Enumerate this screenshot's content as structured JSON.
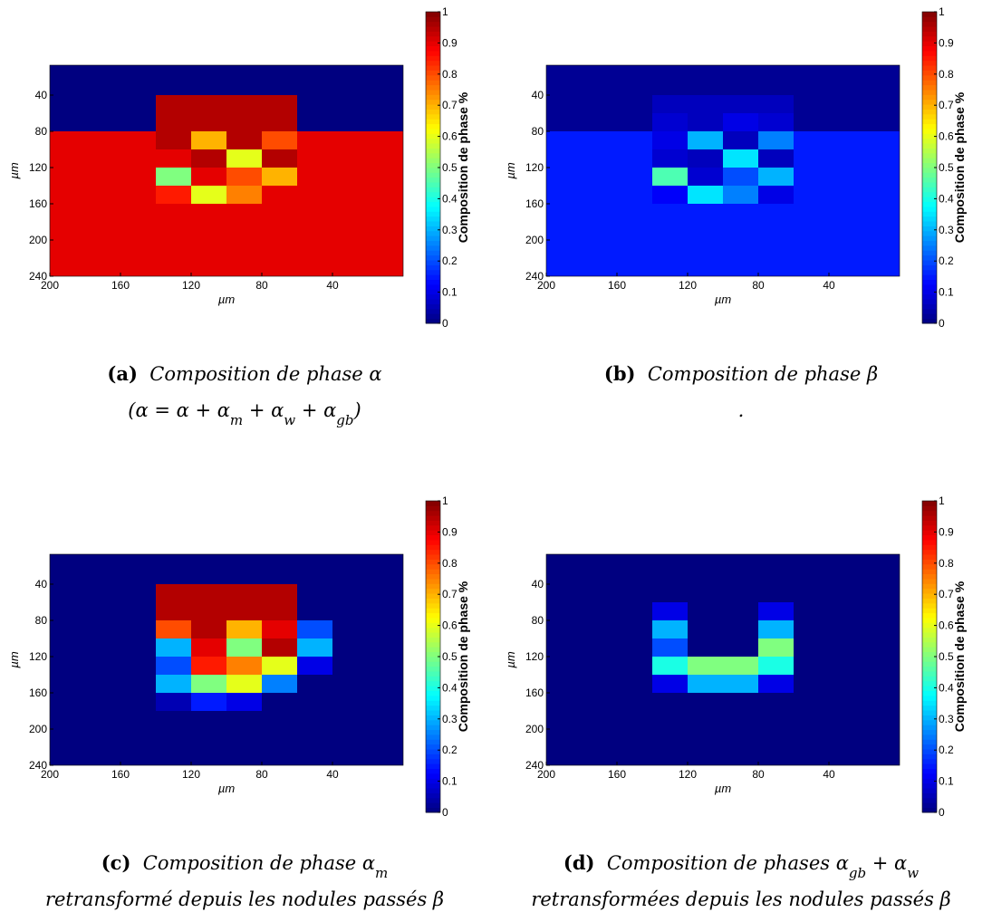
{
  "chart_data": [
    {
      "type": "heatmap",
      "xlabel": "µm",
      "ylabel": "µm",
      "colorbar_label": "Composition de phase %",
      "xlim": [
        200,
        0
      ],
      "ylim": [
        7,
        240
      ],
      "xticks": [
        200,
        160,
        120,
        80,
        40
      ],
      "yticks": [
        40,
        80,
        120,
        160,
        200,
        240
      ],
      "clim": [
        0,
        1
      ],
      "cticks": [
        0,
        0.1,
        0.2,
        0.3,
        0.4,
        0.5,
        0.6,
        0.7,
        0.8,
        0.9,
        1
      ],
      "x": [
        190,
        170,
        150,
        130,
        110,
        90,
        70,
        50,
        30,
        10
      ],
      "y": [
        10,
        30,
        50,
        70,
        90,
        110,
        130,
        150,
        170,
        190,
        210,
        230
      ],
      "z": [
        [
          0,
          0,
          0,
          0,
          0,
          0,
          0,
          0,
          0,
          0
        ],
        [
          0,
          0,
          0,
          0,
          0,
          0,
          0,
          0,
          0,
          0
        ],
        [
          0,
          0,
          0,
          0.95,
          0.95,
          0.95,
          0.95,
          0,
          0,
          0
        ],
        [
          0,
          0,
          0,
          0.95,
          0.95,
          0.95,
          0.95,
          0,
          0,
          0
        ],
        [
          0.9,
          0.9,
          0.9,
          0.95,
          0.7,
          0.95,
          0.8,
          0.9,
          0.9,
          0.9
        ],
        [
          0.9,
          0.9,
          0.9,
          0.9,
          0.95,
          0.6,
          0.95,
          0.9,
          0.9,
          0.9
        ],
        [
          0.9,
          0.9,
          0.9,
          0.5,
          0.9,
          0.8,
          0.7,
          0.9,
          0.9,
          0.9
        ],
        [
          0.9,
          0.9,
          0.9,
          0.85,
          0.6,
          0.75,
          0.9,
          0.9,
          0.9,
          0.9
        ],
        [
          0.9,
          0.9,
          0.9,
          0.9,
          0.9,
          0.9,
          0.9,
          0.9,
          0.9,
          0.9
        ],
        [
          0.9,
          0.9,
          0.9,
          0.9,
          0.9,
          0.9,
          0.9,
          0.9,
          0.9,
          0.9
        ],
        [
          0.9,
          0.9,
          0.9,
          0.9,
          0.9,
          0.9,
          0.9,
          0.9,
          0.9,
          0.9
        ],
        [
          0.9,
          0.9,
          0.9,
          0.9,
          0.9,
          0.9,
          0.9,
          0.9,
          0.9,
          0.9
        ]
      ],
      "caption": {
        "label": "(a)",
        "lines": [
          [
            {
              "text": "Composition de phase α"
            }
          ],
          [
            {
              "text": "(α = α + α"
            },
            {
              "text": "m",
              "sub": true
            },
            {
              "text": " + α"
            },
            {
              "text": "w",
              "sub": true
            },
            {
              "text": " + α"
            },
            {
              "text": "gb",
              "sub": true
            },
            {
              "text": ")"
            }
          ]
        ]
      }
    },
    {
      "type": "heatmap",
      "xlabel": "µm",
      "ylabel": "µm",
      "colorbar_label": "Composition de phase %",
      "xlim": [
        200,
        0
      ],
      "ylim": [
        7,
        240
      ],
      "xticks": [
        200,
        160,
        120,
        80,
        40
      ],
      "yticks": [
        40,
        80,
        120,
        160,
        200,
        240
      ],
      "clim": [
        0,
        1
      ],
      "cticks": [
        0,
        0.1,
        0.2,
        0.3,
        0.4,
        0.5,
        0.6,
        0.7,
        0.8,
        0.9,
        1
      ],
      "x": [
        190,
        170,
        150,
        130,
        110,
        90,
        70,
        50,
        30,
        10
      ],
      "y": [
        10,
        30,
        50,
        70,
        90,
        110,
        130,
        150,
        170,
        190,
        210,
        230
      ],
      "z": [
        [
          0.02,
          0.02,
          0.02,
          0.02,
          0.02,
          0.02,
          0.02,
          0.02,
          0.02,
          0.02
        ],
        [
          0.02,
          0.02,
          0.02,
          0.02,
          0.02,
          0.02,
          0.02,
          0.02,
          0.02,
          0.02
        ],
        [
          0.02,
          0.02,
          0.02,
          0.06,
          0.06,
          0.06,
          0.06,
          0.02,
          0.02,
          0.02
        ],
        [
          0.02,
          0.02,
          0.02,
          0.08,
          0.06,
          0.1,
          0.08,
          0.02,
          0.02,
          0.02
        ],
        [
          0.15,
          0.15,
          0.15,
          0.1,
          0.3,
          0.06,
          0.25,
          0.15,
          0.15,
          0.15
        ],
        [
          0.15,
          0.15,
          0.15,
          0.08,
          0.06,
          0.35,
          0.06,
          0.15,
          0.15,
          0.15
        ],
        [
          0.15,
          0.15,
          0.15,
          0.45,
          0.08,
          0.2,
          0.3,
          0.15,
          0.15,
          0.15
        ],
        [
          0.15,
          0.15,
          0.15,
          0.12,
          0.35,
          0.25,
          0.1,
          0.15,
          0.15,
          0.15
        ],
        [
          0.15,
          0.15,
          0.15,
          0.15,
          0.15,
          0.15,
          0.15,
          0.15,
          0.15,
          0.15
        ],
        [
          0.15,
          0.15,
          0.15,
          0.15,
          0.15,
          0.15,
          0.15,
          0.15,
          0.15,
          0.15
        ],
        [
          0.15,
          0.15,
          0.15,
          0.15,
          0.15,
          0.15,
          0.15,
          0.15,
          0.15,
          0.15
        ],
        [
          0.15,
          0.15,
          0.15,
          0.15,
          0.15,
          0.15,
          0.15,
          0.15,
          0.15,
          0.15
        ]
      ],
      "caption": {
        "label": "(b)",
        "lines": [
          [
            {
              "text": "Composition de phase β"
            }
          ],
          [
            {
              "text": "."
            }
          ]
        ]
      }
    },
    {
      "type": "heatmap",
      "xlabel": "µm",
      "ylabel": "µm",
      "colorbar_label": "Composition de phase %",
      "xlim": [
        200,
        0
      ],
      "ylim": [
        7,
        240
      ],
      "xticks": [
        200,
        160,
        120,
        80,
        40
      ],
      "yticks": [
        40,
        80,
        120,
        160,
        200,
        240
      ],
      "clim": [
        0,
        1
      ],
      "cticks": [
        0,
        0.1,
        0.2,
        0.3,
        0.4,
        0.5,
        0.6,
        0.7,
        0.8,
        0.9,
        1
      ],
      "x": [
        190,
        170,
        150,
        130,
        110,
        90,
        70,
        50,
        30,
        10
      ],
      "y": [
        10,
        30,
        50,
        70,
        90,
        110,
        130,
        150,
        170,
        190,
        210,
        230
      ],
      "z": [
        [
          0,
          0,
          0,
          0,
          0,
          0,
          0,
          0,
          0,
          0
        ],
        [
          0,
          0,
          0,
          0,
          0,
          0,
          0,
          0,
          0,
          0
        ],
        [
          0,
          0,
          0,
          0.95,
          0.95,
          0.95,
          0.95,
          0,
          0,
          0
        ],
        [
          0,
          0,
          0,
          0.95,
          0.95,
          0.95,
          0.95,
          0,
          0,
          0
        ],
        [
          0,
          0,
          0,
          0.8,
          0.95,
          0.7,
          0.9,
          0.2,
          0,
          0
        ],
        [
          0,
          0,
          0,
          0.3,
          0.9,
          0.5,
          0.95,
          0.3,
          0,
          0
        ],
        [
          0,
          0,
          0,
          0.2,
          0.85,
          0.75,
          0.6,
          0.1,
          0,
          0
        ],
        [
          0,
          0,
          0,
          0.3,
          0.5,
          0.6,
          0.25,
          0,
          0,
          0
        ],
        [
          0,
          0,
          0,
          0.05,
          0.15,
          0.1,
          0,
          0,
          0,
          0
        ],
        [
          0,
          0,
          0,
          0,
          0,
          0,
          0,
          0,
          0,
          0
        ],
        [
          0,
          0,
          0,
          0,
          0,
          0,
          0,
          0,
          0,
          0
        ],
        [
          0,
          0,
          0,
          0,
          0,
          0,
          0,
          0,
          0,
          0
        ]
      ],
      "caption": {
        "label": "(c)",
        "lines": [
          [
            {
              "text": "Composition de phase α"
            },
            {
              "text": "m",
              "sub": true
            }
          ],
          [
            {
              "text": "retransformé depuis les nodules passés β"
            }
          ]
        ]
      }
    },
    {
      "type": "heatmap",
      "xlabel": "µm",
      "ylabel": "µm",
      "colorbar_label": "Composition de phase %",
      "xlim": [
        200,
        0
      ],
      "ylim": [
        7,
        240
      ],
      "xticks": [
        200,
        160,
        120,
        80,
        40
      ],
      "yticks": [
        40,
        80,
        120,
        160,
        200,
        240
      ],
      "clim": [
        0,
        1
      ],
      "cticks": [
        0,
        0.1,
        0.2,
        0.3,
        0.4,
        0.5,
        0.6,
        0.7,
        0.8,
        0.9,
        1
      ],
      "x": [
        190,
        170,
        150,
        130,
        110,
        90,
        70,
        50,
        30,
        10
      ],
      "y": [
        10,
        30,
        50,
        70,
        90,
        110,
        130,
        150,
        170,
        190,
        210,
        230
      ],
      "z": [
        [
          0,
          0,
          0,
          0,
          0,
          0,
          0,
          0,
          0,
          0
        ],
        [
          0,
          0,
          0,
          0,
          0,
          0,
          0,
          0,
          0,
          0
        ],
        [
          0,
          0,
          0,
          0,
          0,
          0,
          0,
          0,
          0,
          0
        ],
        [
          0,
          0,
          0,
          0.1,
          0,
          0,
          0.1,
          0,
          0,
          0
        ],
        [
          0,
          0,
          0,
          0.3,
          0,
          0,
          0.3,
          0,
          0,
          0
        ],
        [
          0,
          0,
          0,
          0.2,
          0,
          0,
          0.5,
          0,
          0,
          0
        ],
        [
          0,
          0,
          0,
          0.4,
          0.5,
          0.5,
          0.4,
          0,
          0,
          0
        ],
        [
          0,
          0,
          0,
          0.1,
          0.3,
          0.3,
          0.1,
          0,
          0,
          0
        ],
        [
          0,
          0,
          0,
          0,
          0,
          0,
          0,
          0,
          0,
          0
        ],
        [
          0,
          0,
          0,
          0,
          0,
          0,
          0,
          0,
          0,
          0
        ],
        [
          0,
          0,
          0,
          0,
          0,
          0,
          0,
          0,
          0,
          0
        ],
        [
          0,
          0,
          0,
          0,
          0,
          0,
          0,
          0,
          0,
          0
        ]
      ],
      "caption": {
        "label": "(d)",
        "lines": [
          [
            {
              "text": "Composition de phases α"
            },
            {
              "text": "gb",
              "sub": true
            },
            {
              "text": "  +  α"
            },
            {
              "text": "w",
              "sub": true
            }
          ],
          [
            {
              "text": "retransformées depuis les nodules passés β"
            }
          ]
        ]
      }
    }
  ]
}
